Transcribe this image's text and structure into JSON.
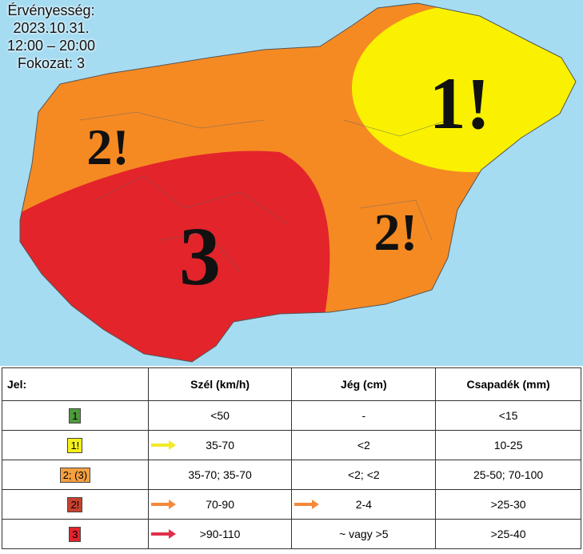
{
  "validity": {
    "lines": [
      "Érvényesség:",
      "2023.10.31.",
      "12:00 – 20:00",
      "Fokozat: 3"
    ]
  },
  "map_labels": [
    "2!",
    "1!",
    "2!",
    "3"
  ],
  "table": {
    "header": [
      "Jel:",
      "Szél (km/h)",
      "Jég (cm)",
      "Csapadék (mm)"
    ],
    "rows": [
      [
        "1",
        "<50",
        "-",
        "<15"
      ],
      [
        "1!",
        "35-70",
        "<2",
        "10-25"
      ],
      [
        "2; (3)",
        "35-70; 35-70",
        "<2; <2",
        "25-50; 70-100"
      ],
      [
        "2!",
        "70-90",
        "2-4",
        ">25-30"
      ],
      [
        "3",
        ">90-110",
        "~ vagy >5",
        ">25-40"
      ]
    ]
  }
}
